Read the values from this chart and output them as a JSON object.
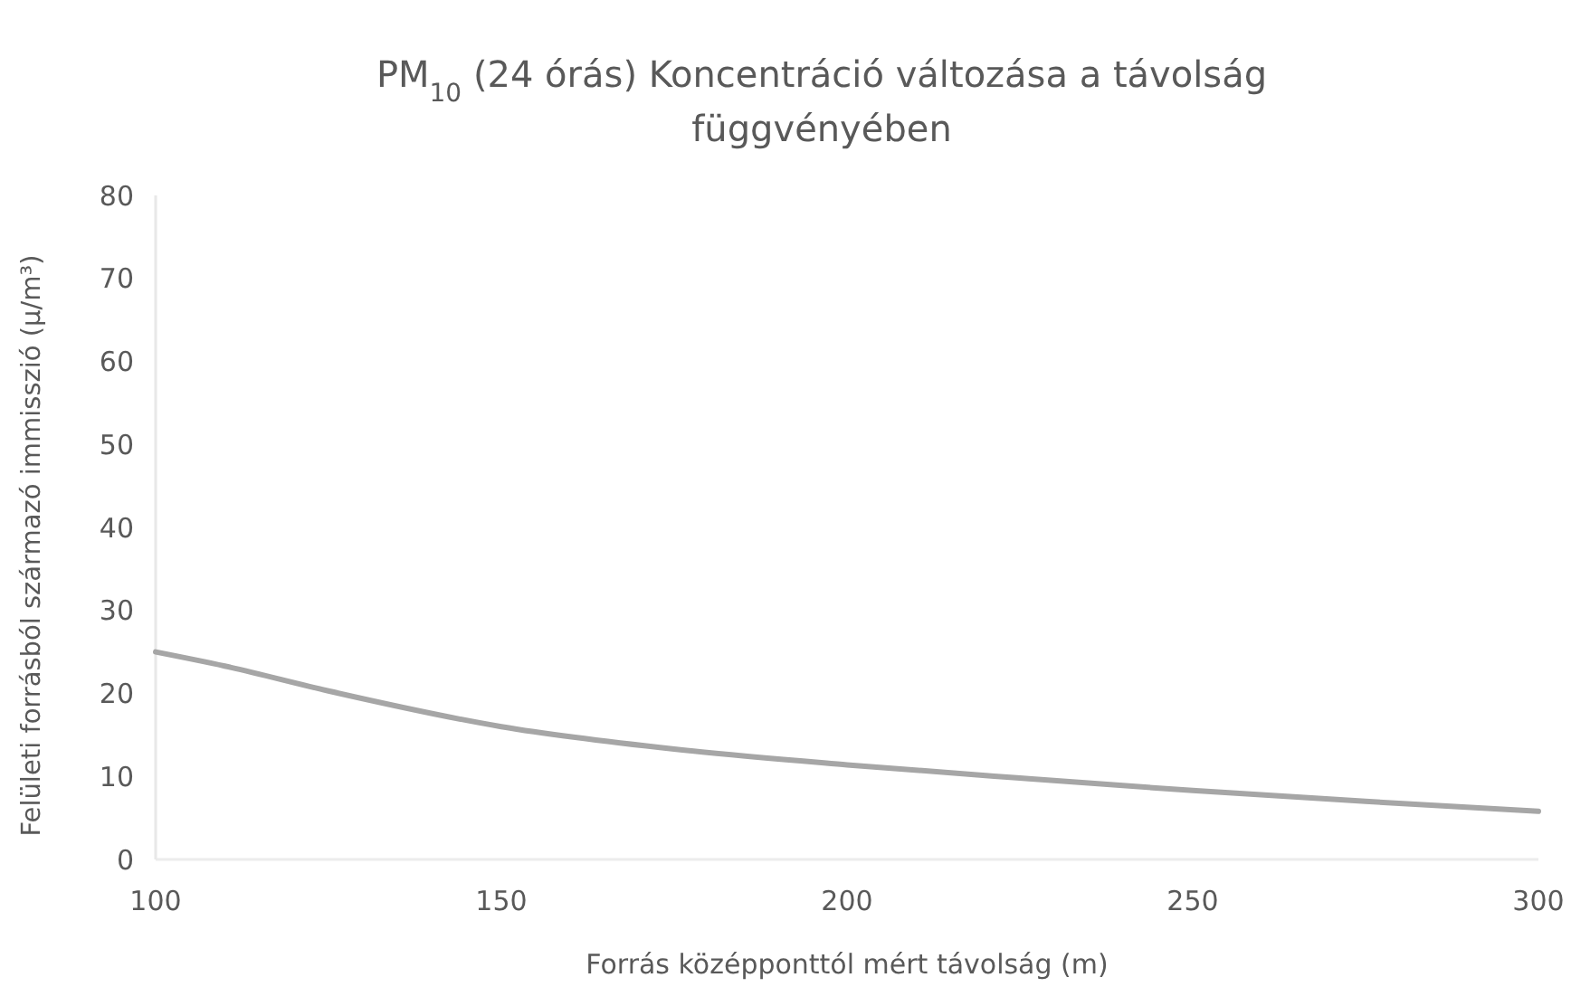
{
  "chart_data": {
    "type": "line",
    "title": "PM$_{10}$ (24 órás) Koncentráció változása a távolság függvényében",
    "xlabel": "Forrás középponttól mért távolság (m)",
    "ylabel": "Felületi forrásból származó immisszió (µ/m³)",
    "x": [
      100,
      110,
      125,
      150,
      175,
      200,
      225,
      250,
      275,
      300
    ],
    "series": [
      {
        "color": "#a6a6a6",
        "values": [
          25,
          23.3,
          20.3,
          16,
          13.3,
          11.4,
          9.8,
          8.3,
          7,
          5.8
        ]
      }
    ],
    "xlim": [
      100,
      300
    ],
    "xticks": [
      100,
      150,
      200,
      250,
      300
    ],
    "ylim": [
      0,
      80
    ],
    "yticks": [
      0,
      10,
      20,
      30,
      40,
      50,
      60,
      70,
      80
    ],
    "grid": false,
    "marker": "none",
    "line_style": "solid"
  }
}
